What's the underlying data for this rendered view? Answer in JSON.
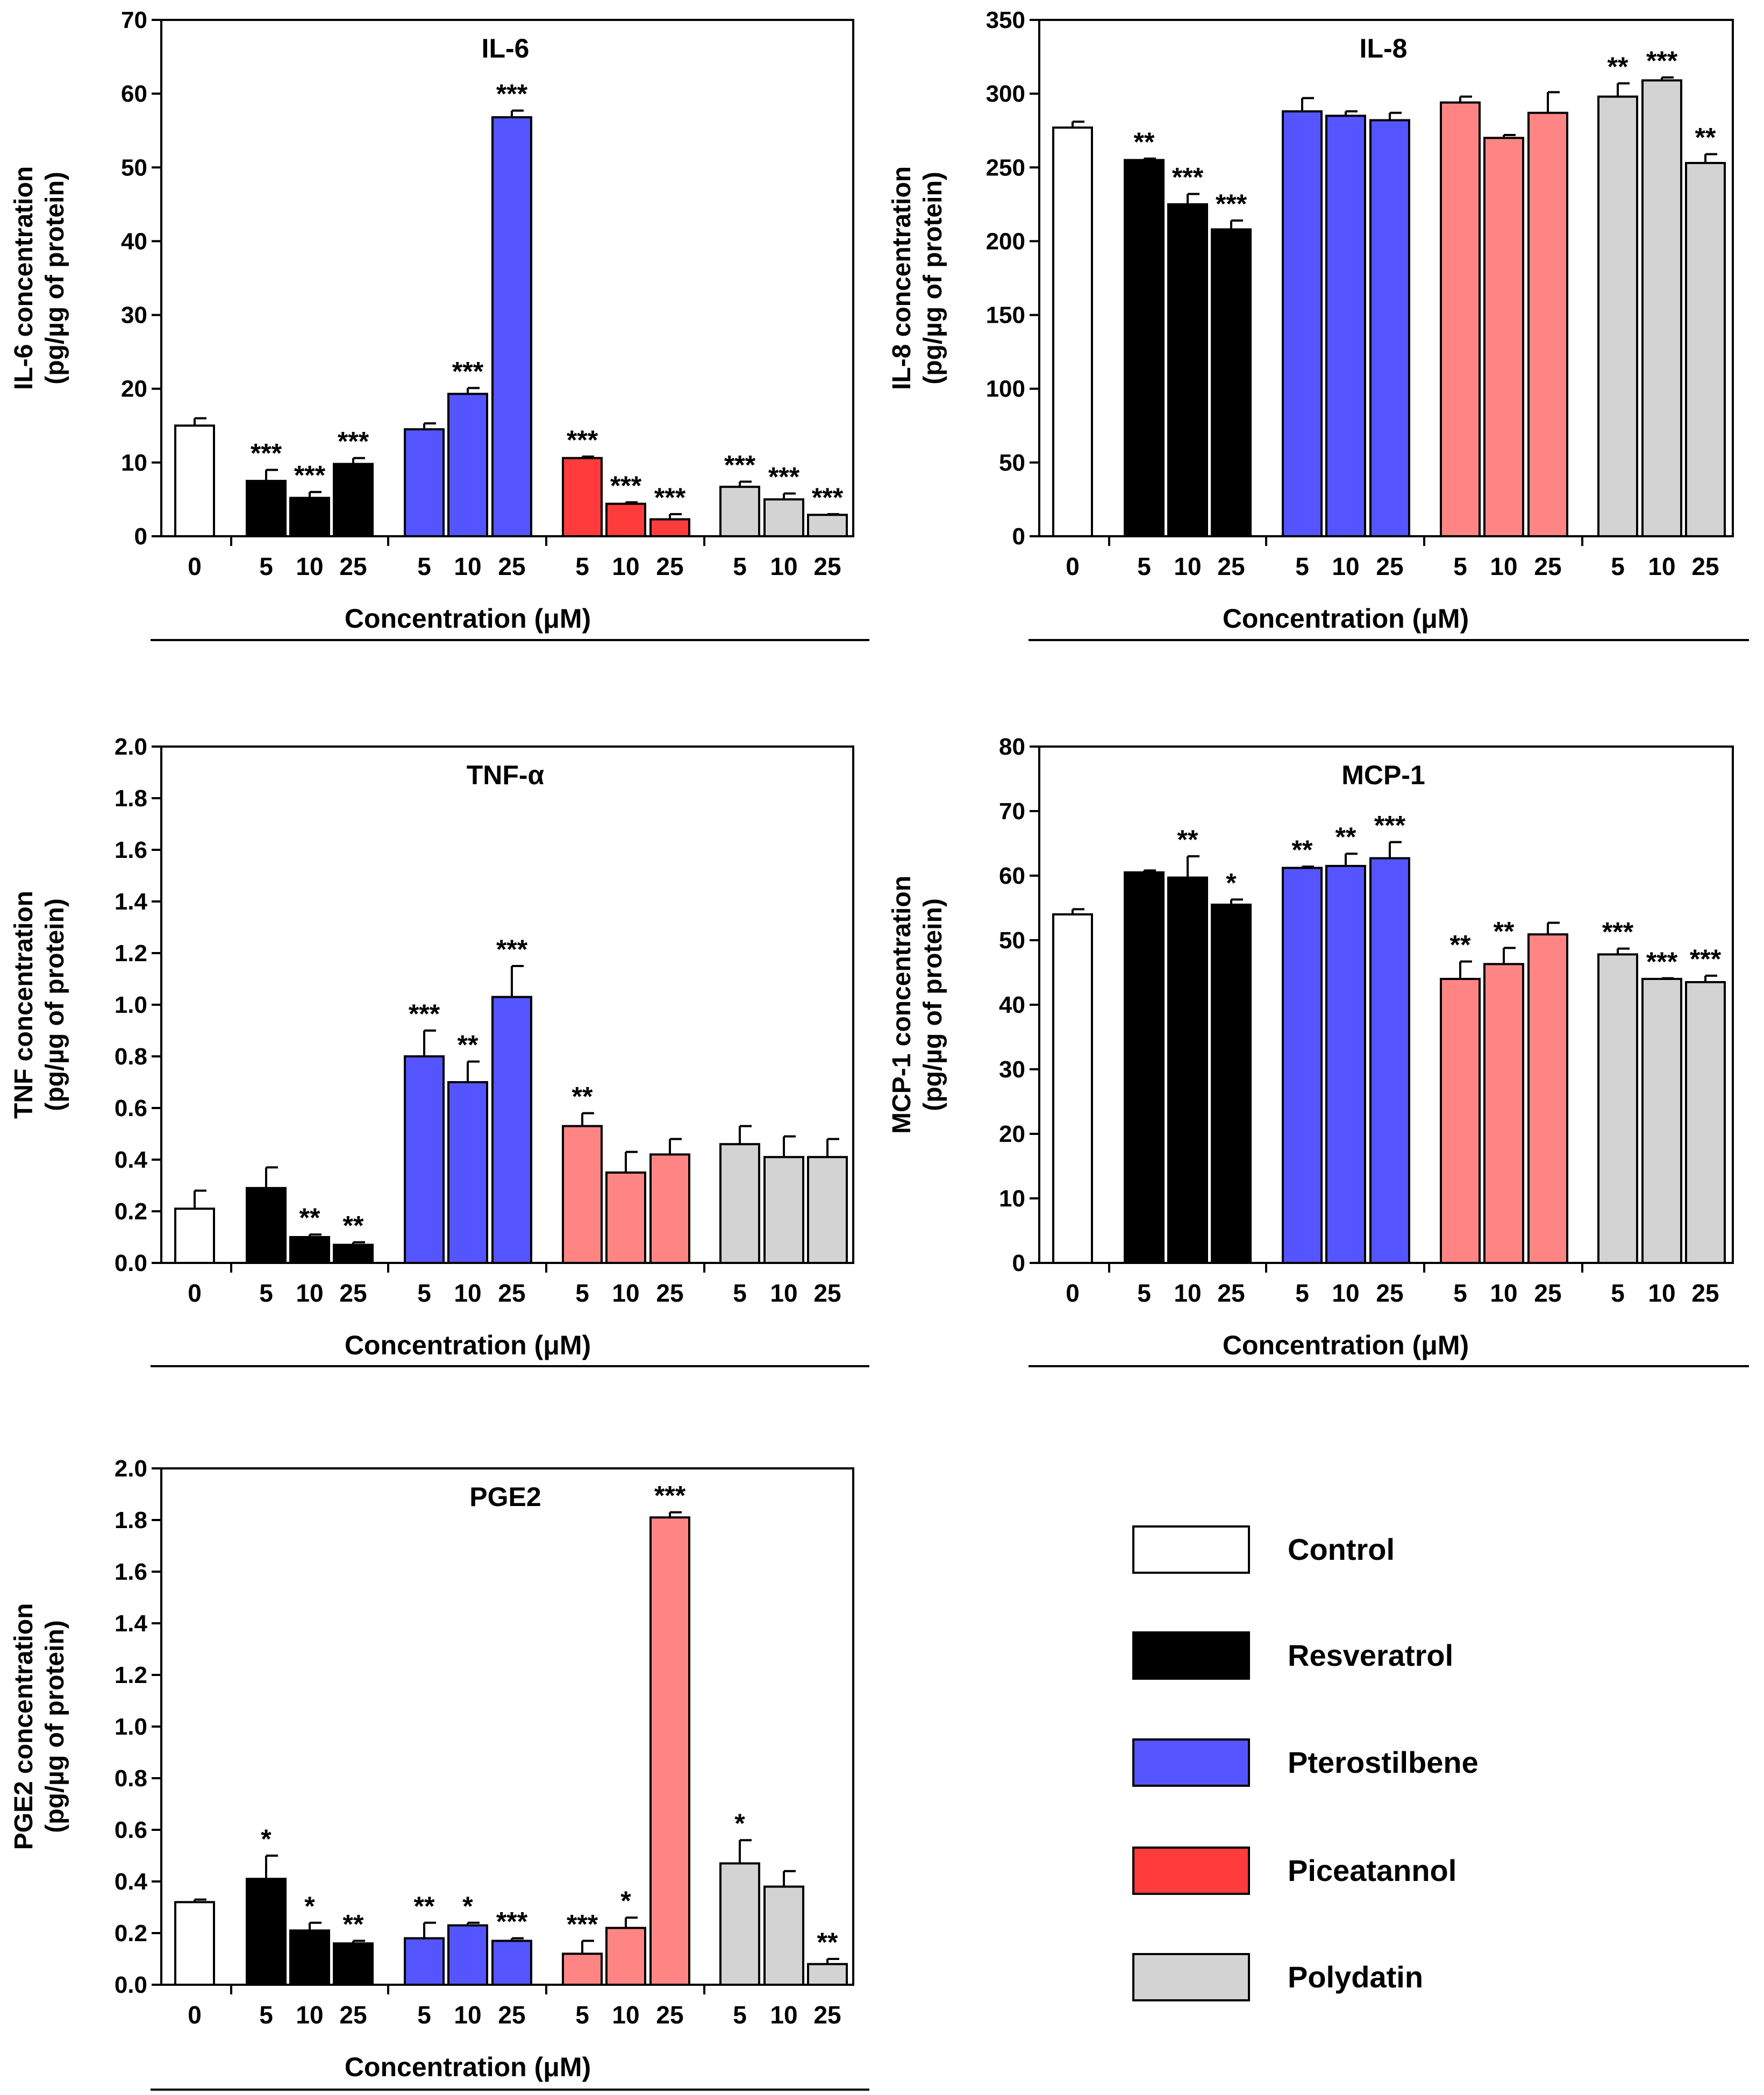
{
  "colors": {
    "control": "#ffffff",
    "resveratrol": "#000000",
    "pterostilbene": "#5555ff",
    "piceatannol": "#ff3b3b",
    "piceatannol_light": "#ff8585",
    "polydatin": "#d3d3d3"
  },
  "legend": [
    {
      "name": "Control",
      "color_key": "control"
    },
    {
      "name": "Resveratrol",
      "color_key": "resveratrol"
    },
    {
      "name": "Pterostilbene",
      "color_key": "pterostilbene"
    },
    {
      "name": "Piceatannol",
      "color_key": "piceatannol"
    },
    {
      "name": "Polydatin",
      "color_key": "polydatin"
    }
  ],
  "chart_data": [
    {
      "type": "bar",
      "title": "IL-6",
      "xlabel": "Concentration (μM)",
      "ylabel": [
        "IL-6 concentration",
        "(pg/µg of protein)"
      ],
      "ylim": [
        0,
        70
      ],
      "yticks": [
        "0",
        "10",
        "20",
        "30",
        "40",
        "50",
        "60",
        "70"
      ],
      "groups": [
        {
          "name": "Control",
          "color_key": "control",
          "categories": [
            "0"
          ],
          "values": [
            15.0
          ],
          "errors": [
            1.0
          ],
          "sig": [
            ""
          ]
        },
        {
          "name": "Resveratrol",
          "color_key": "resveratrol",
          "categories": [
            "5",
            "10",
            "25"
          ],
          "values": [
            7.5,
            5.2,
            9.8
          ],
          "errors": [
            1.5,
            0.8,
            0.8
          ],
          "sig": [
            "***",
            "***",
            "***"
          ]
        },
        {
          "name": "Pterostilbene",
          "color_key": "pterostilbene",
          "categories": [
            "5",
            "10",
            "25"
          ],
          "values": [
            14.5,
            19.3,
            56.8
          ],
          "errors": [
            0.8,
            0.8,
            0.9
          ],
          "sig": [
            "",
            "***",
            "***"
          ]
        },
        {
          "name": "Piceatannol",
          "color_key": "piceatannol",
          "categories": [
            "5",
            "10",
            "25"
          ],
          "values": [
            10.6,
            4.4,
            2.3
          ],
          "errors": [
            0.2,
            0.2,
            0.7
          ],
          "sig": [
            "***",
            "***",
            "***"
          ]
        },
        {
          "name": "Polydatin",
          "color_key": "polydatin",
          "categories": [
            "5",
            "10",
            "25"
          ],
          "values": [
            6.7,
            5.0,
            2.9
          ],
          "errors": [
            0.7,
            0.8,
            0.1
          ],
          "sig": [
            "***",
            "***",
            "***"
          ]
        }
      ]
    },
    {
      "type": "bar",
      "title": "IL-8",
      "xlabel": "Concentration (μM)",
      "ylabel": [
        "IL-8 concentration",
        "(pg/µg of protein)"
      ],
      "ylim": [
        0,
        350
      ],
      "yticks": [
        "0",
        "50",
        "100",
        "150",
        "200",
        "250",
        "300",
        "350"
      ],
      "groups": [
        {
          "name": "Control",
          "color_key": "control",
          "categories": [
            "0"
          ],
          "values": [
            277
          ],
          "errors": [
            4
          ],
          "sig": [
            ""
          ]
        },
        {
          "name": "Resveratrol",
          "color_key": "resveratrol",
          "categories": [
            "5",
            "10",
            "25"
          ],
          "values": [
            255,
            225,
            208
          ],
          "errors": [
            1,
            7,
            6
          ],
          "sig": [
            "**",
            "***",
            "***"
          ]
        },
        {
          "name": "Pterostilbene",
          "color_key": "pterostilbene",
          "categories": [
            "5",
            "10",
            "25"
          ],
          "values": [
            288,
            285,
            282
          ],
          "errors": [
            9,
            3,
            5
          ],
          "sig": [
            "",
            "",
            ""
          ]
        },
        {
          "name": "Piceatannol",
          "color_key": "piceatannol_light",
          "categories": [
            "5",
            "10",
            "25"
          ],
          "values": [
            294,
            270,
            287
          ],
          "errors": [
            4,
            2,
            14
          ],
          "sig": [
            "",
            "",
            ""
          ]
        },
        {
          "name": "Polydatin",
          "color_key": "polydatin",
          "categories": [
            "5",
            "10",
            "25"
          ],
          "values": [
            298,
            309,
            253
          ],
          "errors": [
            9,
            2,
            6
          ],
          "sig": [
            "**",
            "***",
            "**"
          ]
        }
      ]
    },
    {
      "type": "bar",
      "title": "TNF-α",
      "xlabel": "Concentration (μM)",
      "ylabel": [
        "TNF concentration",
        "(pg/µg of protein)"
      ],
      "ylim": [
        0,
        2.0
      ],
      "yticks": [
        "0.0",
        "0.2",
        "0.4",
        "0.6",
        "0.8",
        "1.0",
        "1.2",
        "1.4",
        "1.6",
        "1.8",
        "2.0"
      ],
      "groups": [
        {
          "name": "Control",
          "color_key": "control",
          "categories": [
            "0"
          ],
          "values": [
            0.21
          ],
          "errors": [
            0.07
          ],
          "sig": [
            ""
          ]
        },
        {
          "name": "Resveratrol",
          "color_key": "resveratrol",
          "categories": [
            "5",
            "10",
            "25"
          ],
          "values": [
            0.29,
            0.1,
            0.07
          ],
          "errors": [
            0.08,
            0.01,
            0.01
          ],
          "sig": [
            "",
            "**",
            "**"
          ]
        },
        {
          "name": "Pterostilbene",
          "color_key": "pterostilbene",
          "categories": [
            "5",
            "10",
            "25"
          ],
          "values": [
            0.8,
            0.7,
            1.03
          ],
          "errors": [
            0.1,
            0.08,
            0.12
          ],
          "sig": [
            "***",
            "**",
            "***"
          ]
        },
        {
          "name": "Piceatannol",
          "color_key": "piceatannol_light",
          "categories": [
            "5",
            "10",
            "25"
          ],
          "values": [
            0.53,
            0.35,
            0.42
          ],
          "errors": [
            0.05,
            0.08,
            0.06
          ],
          "sig": [
            "**",
            "",
            ""
          ]
        },
        {
          "name": "Polydatin",
          "color_key": "polydatin",
          "categories": [
            "5",
            "10",
            "25"
          ],
          "values": [
            0.46,
            0.41,
            0.41
          ],
          "errors": [
            0.07,
            0.08,
            0.07
          ],
          "sig": [
            "",
            "",
            ""
          ]
        }
      ]
    },
    {
      "type": "bar",
      "title": "MCP-1",
      "xlabel": "Concentration (μM)",
      "ylabel": [
        "MCP-1 concentration",
        "(pg/µg of protein)"
      ],
      "ylim": [
        0,
        80
      ],
      "yticks": [
        "0",
        "10",
        "20",
        "30",
        "40",
        "50",
        "60",
        "70",
        "80"
      ],
      "groups": [
        {
          "name": "Control",
          "color_key": "control",
          "categories": [
            "0"
          ],
          "values": [
            54.0
          ],
          "errors": [
            0.8
          ],
          "sig": [
            ""
          ]
        },
        {
          "name": "Resveratrol",
          "color_key": "resveratrol",
          "categories": [
            "5",
            "10",
            "25"
          ],
          "values": [
            60.5,
            59.7,
            55.5
          ],
          "errors": [
            0.3,
            3.3,
            0.8
          ],
          "sig": [
            "",
            "**",
            "*"
          ]
        },
        {
          "name": "Pterostilbene",
          "color_key": "pterostilbene",
          "categories": [
            "5",
            "10",
            "25"
          ],
          "values": [
            61.2,
            61.5,
            62.7
          ],
          "errors": [
            0.2,
            1.9,
            2.5
          ],
          "sig": [
            "**",
            "**",
            "***"
          ]
        },
        {
          "name": "Piceatannol",
          "color_key": "piceatannol_light",
          "categories": [
            "5",
            "10",
            "25"
          ],
          "values": [
            44.0,
            46.3,
            50.9
          ],
          "errors": [
            2.7,
            2.5,
            1.8
          ],
          "sig": [
            "**",
            "**",
            ""
          ]
        },
        {
          "name": "Polydatin",
          "color_key": "polydatin",
          "categories": [
            "5",
            "10",
            "25"
          ],
          "values": [
            47.8,
            44.0,
            43.5
          ],
          "errors": [
            0.9,
            0.1,
            1.0
          ],
          "sig": [
            "***",
            "***",
            "***"
          ]
        }
      ]
    },
    {
      "type": "bar",
      "title": "PGE2",
      "xlabel": "Concentration (μM)",
      "ylabel": [
        "PGE2 concentration",
        "(pg/µg of protein)"
      ],
      "ylim": [
        0,
        2.0
      ],
      "yticks": [
        "0.0",
        "0.2",
        "0.4",
        "0.6",
        "0.8",
        "1.0",
        "1.2",
        "1.4",
        "1.6",
        "1.8",
        "2.0"
      ],
      "groups": [
        {
          "name": "Control",
          "color_key": "control",
          "categories": [
            "0"
          ],
          "values": [
            0.32
          ],
          "errors": [
            0.01
          ],
          "sig": [
            ""
          ]
        },
        {
          "name": "Resveratrol",
          "color_key": "resveratrol",
          "categories": [
            "5",
            "10",
            "25"
          ],
          "values": [
            0.41,
            0.21,
            0.16
          ],
          "errors": [
            0.09,
            0.03,
            0.01
          ],
          "sig": [
            "*",
            "*",
            "**"
          ]
        },
        {
          "name": "Pterostilbene",
          "color_key": "pterostilbene",
          "categories": [
            "5",
            "10",
            "25"
          ],
          "values": [
            0.18,
            0.23,
            0.17
          ],
          "errors": [
            0.06,
            0.01,
            0.01
          ],
          "sig": [
            "**",
            "*",
            "***"
          ]
        },
        {
          "name": "Piceatannol",
          "color_key": "piceatannol_light",
          "categories": [
            "5",
            "10",
            "25"
          ],
          "values": [
            0.12,
            0.22,
            1.81
          ],
          "errors": [
            0.05,
            0.04,
            0.02
          ],
          "sig": [
            "***",
            "*",
            "***"
          ]
        },
        {
          "name": "Polydatin",
          "color_key": "polydatin",
          "categories": [
            "5",
            "10",
            "25"
          ],
          "values": [
            0.47,
            0.38,
            0.08
          ],
          "errors": [
            0.09,
            0.06,
            0.02
          ],
          "sig": [
            "*",
            "",
            "**"
          ]
        }
      ]
    }
  ]
}
